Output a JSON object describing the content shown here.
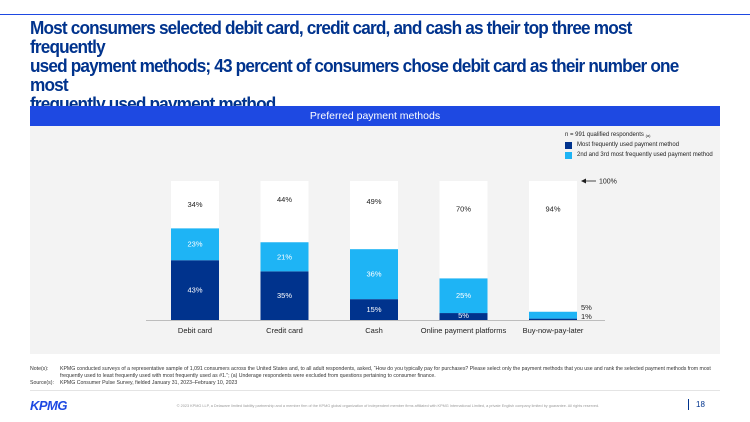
{
  "headline": "Most consumers selected debit card, credit card, and cash as their top three most frequently\nused payment methods; 43 percent of consumers chose debit card as their number one most\nfrequently used payment method.",
  "panel_title": "Preferred payment methods",
  "legend": {
    "sample": "n = 991 qualified respondents",
    "sample_note": "(a)",
    "items": [
      {
        "label": "Most frequently used payment method",
        "color": "#00338d"
      },
      {
        "label": "2nd and 3rd most frequently used payment method",
        "color": "#1eb4f5"
      }
    ]
  },
  "colors": {
    "accent": "#1e49e2",
    "dark_blue": "#00338d",
    "light_blue": "#1eb4f5",
    "remainder": "#ffffff",
    "panel_bg": "#f3f3f3"
  },
  "chart_data": {
    "type": "bar",
    "stacked": true,
    "categories": [
      "Debit card",
      "Credit card",
      "Cash",
      "Online payment platforms",
      "Buy-now-pay-later"
    ],
    "series": [
      {
        "name": "Most frequently used payment method",
        "values": [
          43,
          35,
          15,
          5,
          1
        ],
        "labels": [
          "43%",
          "35%",
          "15%",
          "5%",
          "1%"
        ]
      },
      {
        "name": "2nd and 3rd most frequently used payment method",
        "values": [
          23,
          21,
          36,
          25,
          5
        ],
        "labels": [
          "23%",
          "21%",
          "36%",
          "25%",
          "5%"
        ]
      },
      {
        "name": "",
        "values": [
          34,
          44,
          49,
          70,
          94
        ],
        "labels": [
          "34%",
          "44%",
          "49%",
          "70%",
          "94%"
        ]
      }
    ],
    "ylim": [
      0,
      100
    ],
    "reference_label": "100%",
    "grid": false
  },
  "notes": {
    "note_label": "Note(s):",
    "note_text": "KPMG conducted surveys of a representative sample of 1,091 consumers across the United States and, to all adult respondents, asked, “How do you typically pay for purchases? Please select only the payment methods that you use and rank the selected payment methods from most frequently used to least frequently used with most frequently used as #1.”; (a) Underage respondents were excluded from questions pertaining to consumer finance.",
    "source_label": "Source(s):",
    "source_text": "KPMG Consumer Pulse Survey, fielded January 31, 2023–February 10, 2023"
  },
  "footer": {
    "logo": "KPMG",
    "copyright": "© 2023 KPMG LLP, a Delaware limited liability partnership and a member firm of the KPMG global organization of independent member firms affiliated with KPMG International Limited, a private English company limited by guarantee. All rights reserved.",
    "page": "18"
  }
}
